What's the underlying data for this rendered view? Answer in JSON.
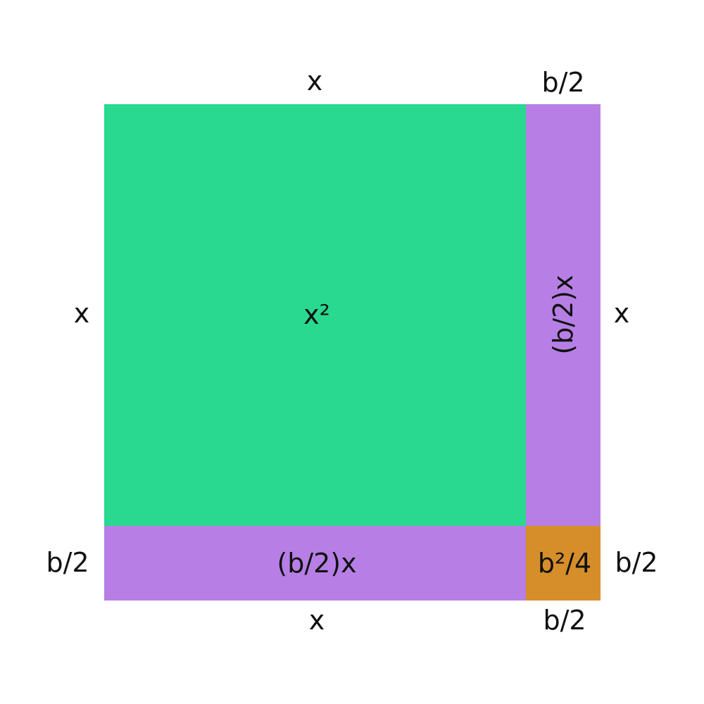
{
  "colors": {
    "square_x": "#29d98f",
    "rect_bx": "#b77fe5",
    "square_b": "#d68e2b",
    "text": "#111111",
    "background": "#ffffff"
  },
  "regions": {
    "x_squared": "x²",
    "right_rect": "(b/2)x",
    "bottom_rect": "(b/2)x",
    "corner_square": "b²/4"
  },
  "edge_labels": {
    "top_x": "x",
    "top_b2": "b/2",
    "left_x": "x",
    "left_b2": "b/2",
    "right_x": "x",
    "right_b2": "b/2",
    "bottom_x": "x",
    "bottom_b2": "b/2"
  }
}
